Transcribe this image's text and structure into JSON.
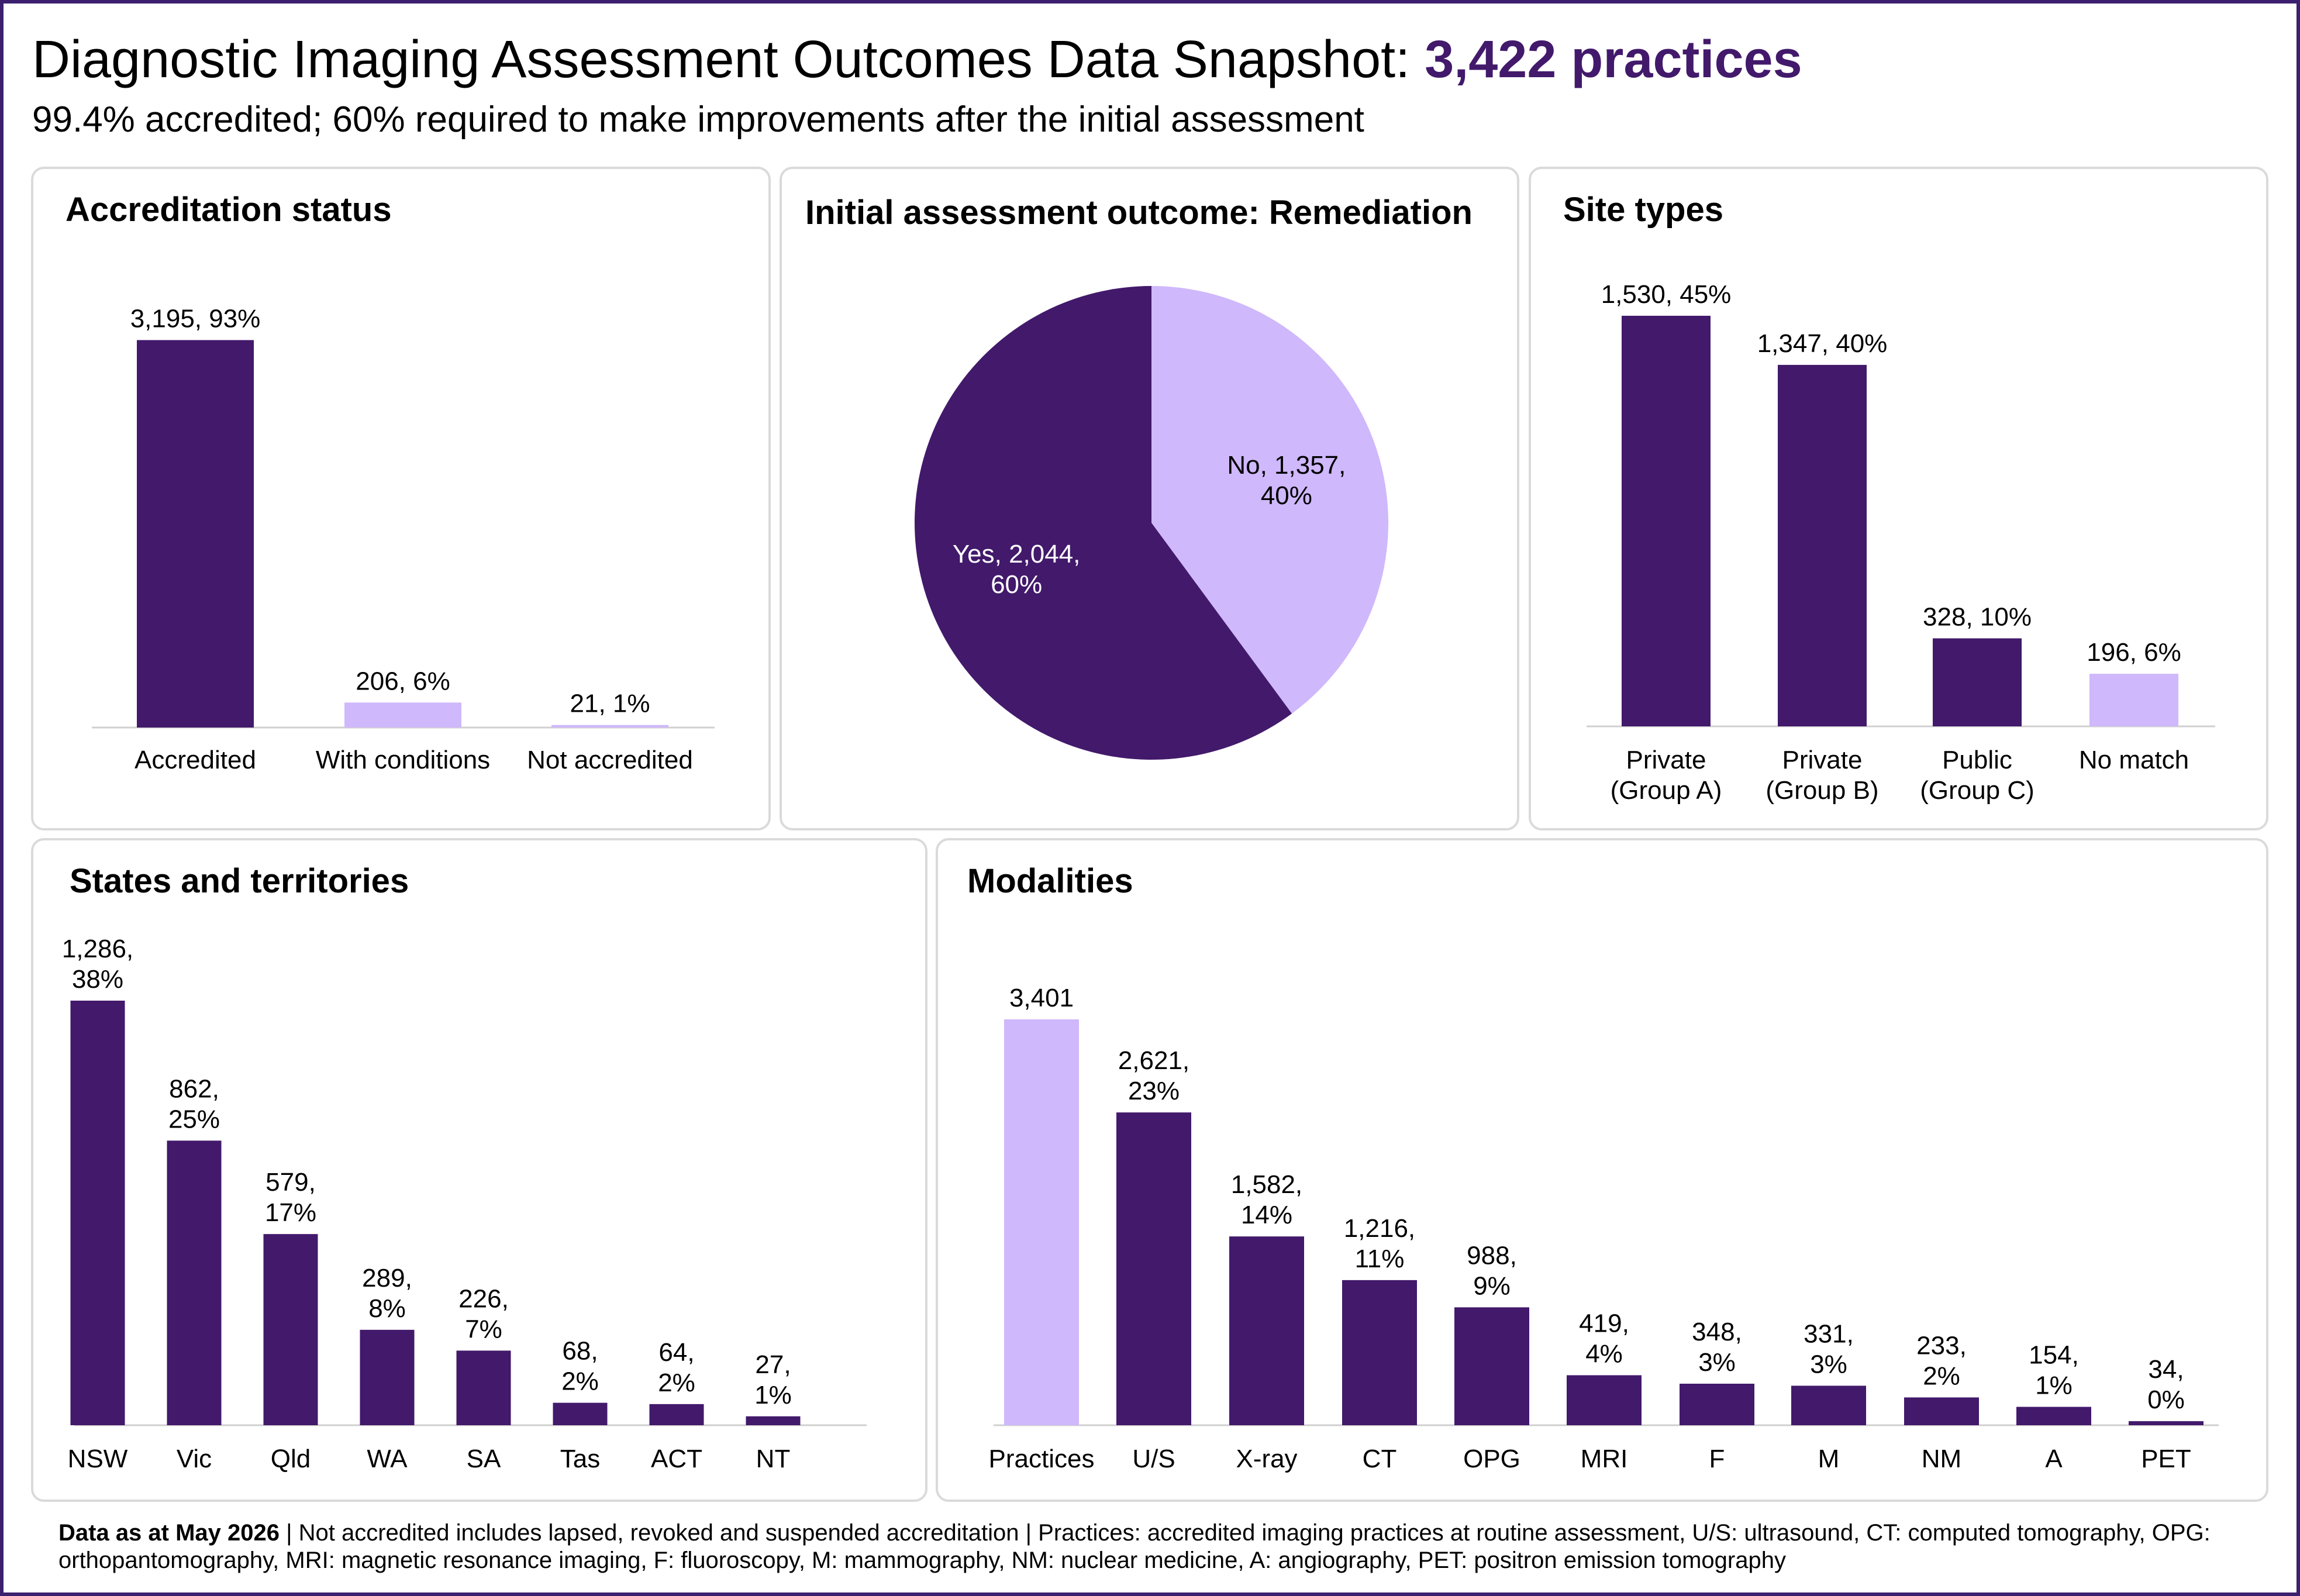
{
  "title": {
    "main": "Diagnostic Imaging Assessment Outcomes Data Snapshot:",
    "highlight": "3,422 practices",
    "subtitle": "99.4% accredited; 60% required to make improvements after the initial assessment"
  },
  "colors": {
    "dark": "#42196b",
    "light": "#cfb8fb",
    "axis": "#d0d0d0",
    "border": "#3c1f6e"
  },
  "chart_data": [
    {
      "id": "accreditation",
      "type": "bar",
      "title": "Accreditation status",
      "categories": [
        "Accredited",
        "With conditions",
        "Not accredited"
      ],
      "values": [
        3195,
        206,
        21
      ],
      "data_labels": [
        [
          "3,195, 93%"
        ],
        [
          "206, 6%"
        ],
        [
          "21, 1%"
        ]
      ],
      "colors": [
        "#42196b",
        "#cfb8fb",
        "#cfb8fb"
      ],
      "ylim": [
        0,
        3400
      ]
    },
    {
      "id": "remediation",
      "type": "pie",
      "title": "Initial assessment outcome: Remediation",
      "slices": [
        {
          "label": "No",
          "value": 1357,
          "percent": 40,
          "text": [
            "No, 1,357,",
            "40%"
          ],
          "color": "#cfb8fb"
        },
        {
          "label": "Yes",
          "value": 2044,
          "percent": 60,
          "text": [
            "Yes, 2,044,",
            "60%"
          ],
          "color": "#42196b"
        }
      ]
    },
    {
      "id": "site_types",
      "type": "bar",
      "title": "Site types",
      "categories": [
        [
          "Private",
          "(Group A)"
        ],
        [
          "Private",
          "(Group B)"
        ],
        [
          "Public",
          "(Group C)"
        ],
        [
          "No match"
        ]
      ],
      "values": [
        1530,
        1347,
        328,
        196
      ],
      "data_labels": [
        [
          "1,530, 45%"
        ],
        [
          "1,347, 40%"
        ],
        [
          "328, 10%"
        ],
        [
          "196, 6%"
        ]
      ],
      "colors": [
        "#42196b",
        "#42196b",
        "#42196b",
        "#cfb8fb"
      ],
      "ylim": [
        0,
        1580
      ]
    },
    {
      "id": "states",
      "type": "bar",
      "title": "States and territories",
      "categories": [
        "NSW",
        "Vic",
        "Qld",
        "WA",
        "SA",
        "Tas",
        "ACT",
        "NT"
      ],
      "values": [
        1286,
        862,
        579,
        289,
        226,
        68,
        64,
        27
      ],
      "data_labels": [
        [
          "1,286,",
          "38%"
        ],
        [
          "862,",
          "25%"
        ],
        [
          "579,",
          "17%"
        ],
        [
          "289,",
          "8%"
        ],
        [
          "226,",
          "7%"
        ],
        [
          "68,",
          "2%"
        ],
        [
          "64,",
          "2%"
        ],
        [
          "27,",
          "1%"
        ]
      ],
      "colors": [
        "#42196b",
        "#42196b",
        "#42196b",
        "#42196b",
        "#42196b",
        "#42196b",
        "#42196b",
        "#42196b"
      ],
      "ylim": [
        0,
        1286
      ]
    },
    {
      "id": "modalities",
      "type": "bar",
      "title": "Modalities",
      "categories": [
        "Practices",
        "U/S",
        "X-ray",
        "CT",
        "OPG",
        "MRI",
        "F",
        "M",
        "NM",
        "A",
        "PET"
      ],
      "values": [
        3401,
        2621,
        1582,
        1216,
        988,
        419,
        348,
        331,
        233,
        154,
        34
      ],
      "data_labels": [
        [
          "3,401"
        ],
        [
          "2,621,",
          "23%"
        ],
        [
          "1,582,",
          "14%"
        ],
        [
          "1,216,",
          "11%"
        ],
        [
          "988,",
          "9%"
        ],
        [
          "419,",
          "4%"
        ],
        [
          "348,",
          "3%"
        ],
        [
          "331,",
          "3%"
        ],
        [
          "233,",
          "2%"
        ],
        [
          "154,",
          "1%"
        ],
        [
          "34,",
          "0%"
        ]
      ],
      "colors": [
        "#cfb8fb",
        "#42196b",
        "#42196b",
        "#42196b",
        "#42196b",
        "#42196b",
        "#42196b",
        "#42196b",
        "#42196b",
        "#42196b",
        "#42196b"
      ],
      "ylim": [
        0,
        3401
      ]
    }
  ],
  "footer": {
    "bold": "Data as at May 2026",
    "text": " | Not accredited includes lapsed, revoked and suspended accreditation | Practices: accredited imaging practices at routine assessment, U/S: ultrasound, CT: computed tomography, OPG: orthopantomography, MRI: magnetic resonance imaging, F: fluoroscopy, M: mammography, NM: nuclear medicine, A: angiography, PET: positron emission tomography"
  }
}
